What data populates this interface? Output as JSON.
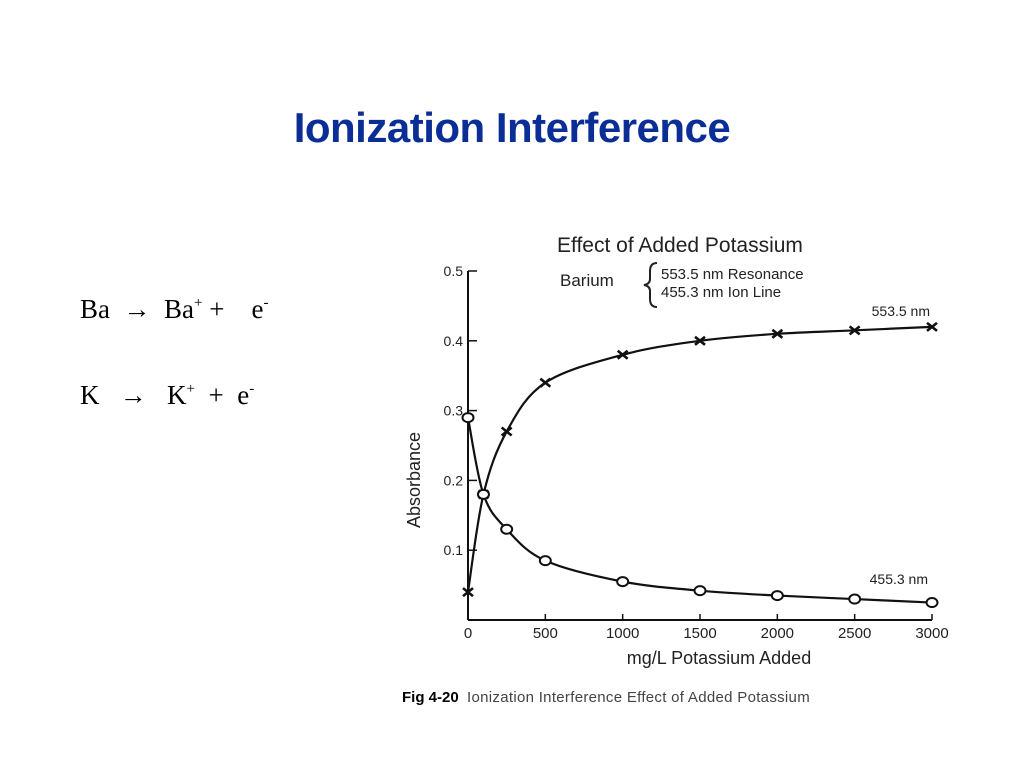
{
  "slide": {
    "title": "Ionization Interference"
  },
  "equations": [
    {
      "lhs": "Ba",
      "arrow": "→",
      "ion": "Ba",
      "charge": "+",
      "plus": "+",
      "electron": "e",
      "echarge": "-"
    },
    {
      "lhs": "K",
      "arrow": "→",
      "ion": "K",
      "charge": "+",
      "plus": "+",
      "electron": "e",
      "echarge": "-"
    }
  ],
  "caption": {
    "fig": "Fig 4-20",
    "text": "Ionization Interference Effect of Added Potassium"
  },
  "chart_data": {
    "type": "line",
    "title": "Effect of Added Potassium",
    "legend": {
      "element": "Barium",
      "lines": [
        "553.5 nm Resonance",
        "455.3 nm Ion Line"
      ],
      "placement": "top"
    },
    "xlabel": "mg/L Potassium Added",
    "ylabel": "Absorbance",
    "xlim": [
      0,
      3000
    ],
    "ylim": [
      0,
      0.5
    ],
    "x_ticks": [
      "0",
      "500",
      "1000",
      "1500",
      "2000",
      "2500",
      "3000"
    ],
    "y_ticks": [
      "0.1",
      "0.2",
      "0.3",
      "0.4",
      "0.5"
    ],
    "grid": false,
    "series": [
      {
        "name": "553.5 nm",
        "marker": "x",
        "x": [
          0,
          100,
          250,
          500,
          1000,
          1500,
          2000,
          2500,
          3000
        ],
        "y": [
          0.04,
          0.18,
          0.27,
          0.34,
          0.38,
          0.4,
          0.41,
          0.415,
          0.42
        ]
      },
      {
        "name": "455.3 nm",
        "marker": "o",
        "x": [
          0,
          100,
          250,
          500,
          1000,
          1500,
          2000,
          2500,
          3000
        ],
        "y": [
          0.29,
          0.18,
          0.13,
          0.085,
          0.055,
          0.042,
          0.035,
          0.03,
          0.025
        ]
      }
    ]
  }
}
